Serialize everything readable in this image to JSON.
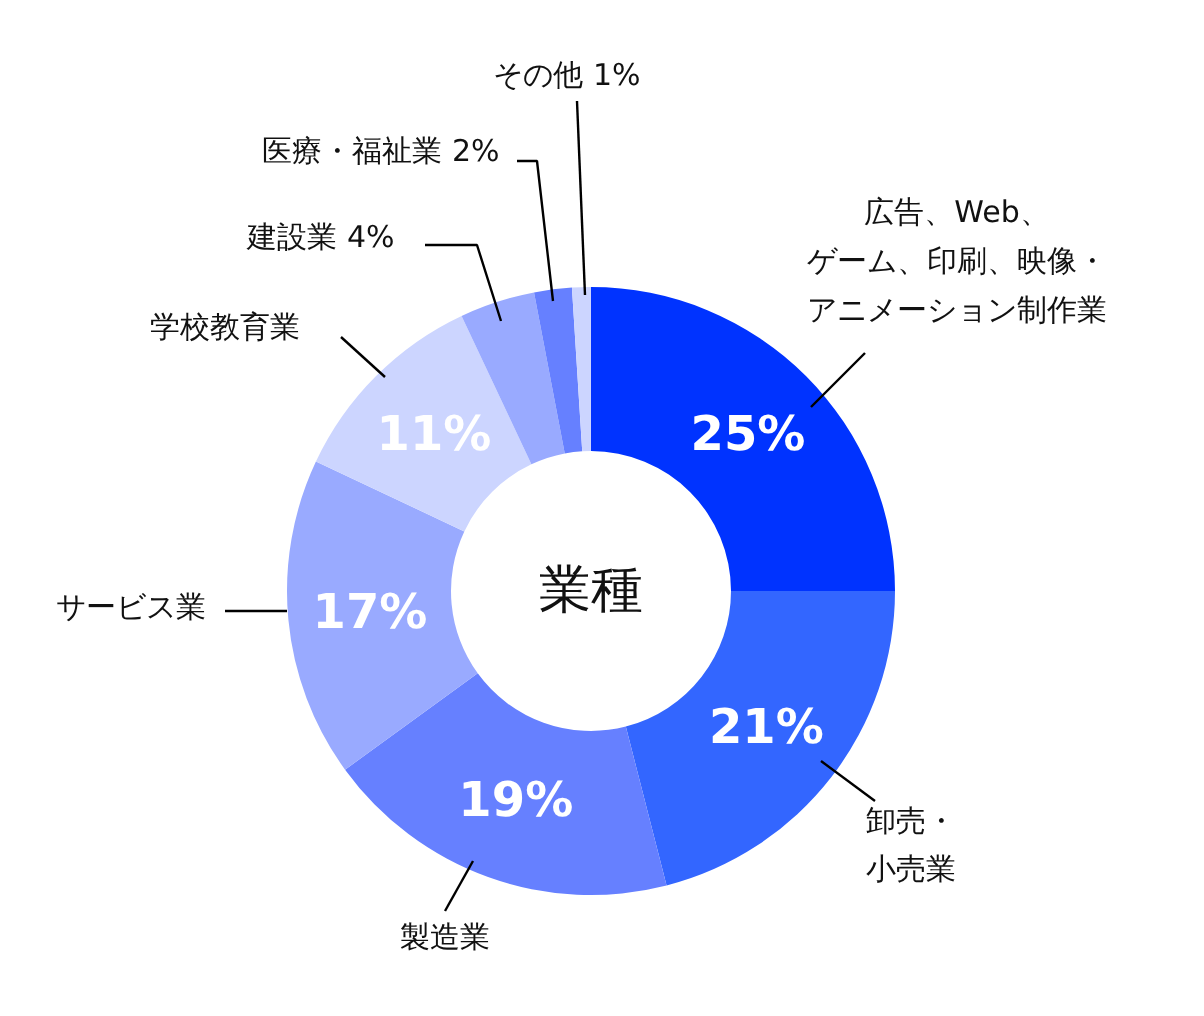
{
  "chart_data": {
    "type": "donut",
    "title": "業種",
    "categories": [
      "広告、Web、ゲーム、印刷、映像・アニメーション制作業",
      "卸売・小売業",
      "製造業",
      "サービス業",
      "学校教育業",
      "建設業",
      "医療・福祉業",
      "その他"
    ],
    "values": [
      25,
      21,
      19,
      17,
      11,
      4,
      2,
      1
    ],
    "colors": [
      "#0033ff",
      "#3366ff",
      "#6680ff",
      "#99aaff",
      "#ccd5ff",
      "#99aaff",
      "#6680ff",
      "#ccd5ff"
    ],
    "value_labels": [
      "25%",
      "21%",
      "19%",
      "17%",
      "11%",
      "4%",
      "2%",
      "1%"
    ]
  }
}
